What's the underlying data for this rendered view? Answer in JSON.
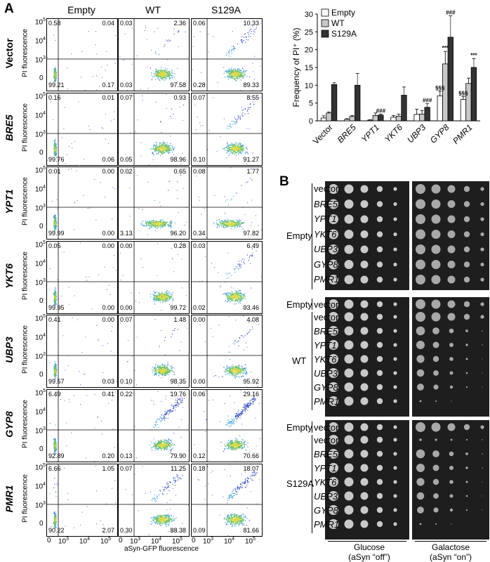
{
  "panels": {
    "a": "A",
    "b": "B"
  },
  "flow": {
    "columns": [
      "Empty",
      "WT",
      "S129A"
    ],
    "rows": [
      {
        "label": "Vector",
        "italic": false,
        "vals": [
          [
            "0.58",
            "0.04",
            "99.21",
            "0.17"
          ],
          [
            "0.03",
            "2.36",
            "0.03",
            "97.58"
          ],
          [
            "0.06",
            "10.33",
            "0.28",
            "89.33"
          ]
        ]
      },
      {
        "label": "BRE5",
        "italic": true,
        "vals": [
          [
            "0.16",
            "0.01",
            "99.76",
            "0.06"
          ],
          [
            "0.07",
            "0.93",
            "0.05",
            "98.96"
          ],
          [
            "0.07",
            "8.55",
            "0.10",
            "91.27"
          ]
        ]
      },
      {
        "label": "YPT1",
        "italic": true,
        "vals": [
          [
            "0.01",
            "0.00",
            "99.99",
            "0.00"
          ],
          [
            "0.02",
            "0.65",
            "3.13",
            "96.20"
          ],
          [
            "0.08",
            "1.77",
            "0.34",
            "97.82"
          ]
        ]
      },
      {
        "label": "YKT6",
        "italic": true,
        "vals": [
          [
            "0.05",
            "0.00",
            "99.95",
            "0.00"
          ],
          [
            "0.00",
            "0.28",
            "0.00",
            "99.72"
          ],
          [
            "0.03",
            "6.49",
            "0.02",
            "93.46"
          ]
        ]
      },
      {
        "label": "UBP3",
        "italic": true,
        "vals": [
          [
            "0.41",
            "0.00",
            "99.57",
            "0.03"
          ],
          [
            "0.07",
            "1.48",
            "0.10",
            "98.35"
          ],
          [
            "0.00",
            "4.08",
            "0.00",
            "95.92"
          ]
        ]
      },
      {
        "label": "GYP8",
        "italic": true,
        "vals": [
          [
            "6.49",
            "0.41",
            "92.89",
            "0.20"
          ],
          [
            "0.22",
            "19.76",
            "0.13",
            "79.90"
          ],
          [
            "0.06",
            "29.16",
            "0.12",
            "70.66"
          ]
        ]
      },
      {
        "label": "PMR1",
        "italic": true,
        "vals": [
          [
            "6.66",
            "1.05",
            "90.22",
            "2.07"
          ],
          [
            "0.07",
            "11.25",
            "0.30",
            "88.38"
          ],
          [
            "0.18",
            "18.07",
            "0.09",
            "81.66"
          ]
        ]
      }
    ],
    "ylabel": "PI fluorescence",
    "xlabel": "aSyn-GFP fluorescence",
    "yticks": [
      "10^5",
      "10^4",
      "10^3",
      "0"
    ],
    "xticks": [
      "0",
      "10^3",
      "10^4",
      "10^5"
    ]
  },
  "chart_data": {
    "type": "bar",
    "title": "",
    "ylabel": "Frequency of PI⁺ (%)",
    "ylim": [
      0,
      30
    ],
    "yticks": [
      0,
      5,
      10,
      15,
      20,
      25,
      30
    ],
    "categories": [
      "Vector",
      "BRE5",
      "YPT1",
      "YKT6",
      "UBP3",
      "GYP8",
      "PMR1"
    ],
    "series": [
      {
        "name": "Empty",
        "color": "#ffffff",
        "values": [
          0.8,
          0.4,
          0.2,
          1.0,
          1.8,
          7.0,
          6.0
        ],
        "errors": [
          0.6,
          0.2,
          0.1,
          0.5,
          1.5,
          1.3,
          0.8
        ]
      },
      {
        "name": "WT",
        "color": "#c8c8c8",
        "values": [
          2.2,
          1.2,
          1.5,
          1.3,
          1.9,
          16.0,
          10.5
        ],
        "errors": [
          0.3,
          0.3,
          0.7,
          0.6,
          1.0,
          3.5,
          1.5
        ]
      },
      {
        "name": "S129A",
        "color": "#333333",
        "values": [
          10.2,
          10.0,
          1.6,
          7.2,
          3.8,
          23.5,
          15.0
        ],
        "errors": [
          0.5,
          3.3,
          0.3,
          2.3,
          1.0,
          6.0,
          2.5
        ]
      }
    ],
    "annotations": [
      {
        "text": "###",
        "cat": 2,
        "series": 2
      },
      {
        "text": "###",
        "cat": 4,
        "series": 2
      },
      {
        "text": "§§§",
        "cat": 5,
        "series": 0
      },
      {
        "text": "***",
        "cat": 5,
        "series": 1
      },
      {
        "text": "###",
        "cat": 5,
        "series": 2
      },
      {
        "text": "§§§",
        "cat": 6,
        "series": 0
      },
      {
        "text": "***",
        "cat": 6,
        "series": 2
      }
    ],
    "legend": "top-left"
  },
  "spots": {
    "groups": [
      {
        "label": "Empty",
        "strains": [
          "vector",
          "BRE5",
          "YPT1",
          "YKT6",
          "UBP3",
          "GYP8",
          "PMR1"
        ]
      },
      {
        "label": "WT",
        "pre_label": "Empty",
        "pre_strain": "vector",
        "strains": [
          "vector",
          "BRE5",
          "YPT1",
          "YKT6",
          "UBP3",
          "GYP8",
          "PMR1"
        ]
      },
      {
        "label": "S129A",
        "pre_label": "Empty",
        "pre_strain": "vector",
        "strains": [
          "vector",
          "BRE5",
          "YPT1",
          "YKT6",
          "UBP3",
          "GYP8",
          "PMR1"
        ]
      }
    ],
    "conditions": [
      {
        "line1": "Glucose",
        "line2": "(aSyn “off”)"
      },
      {
        "line1": "Galactose",
        "line2": "(aSyn “on”)"
      }
    ]
  }
}
